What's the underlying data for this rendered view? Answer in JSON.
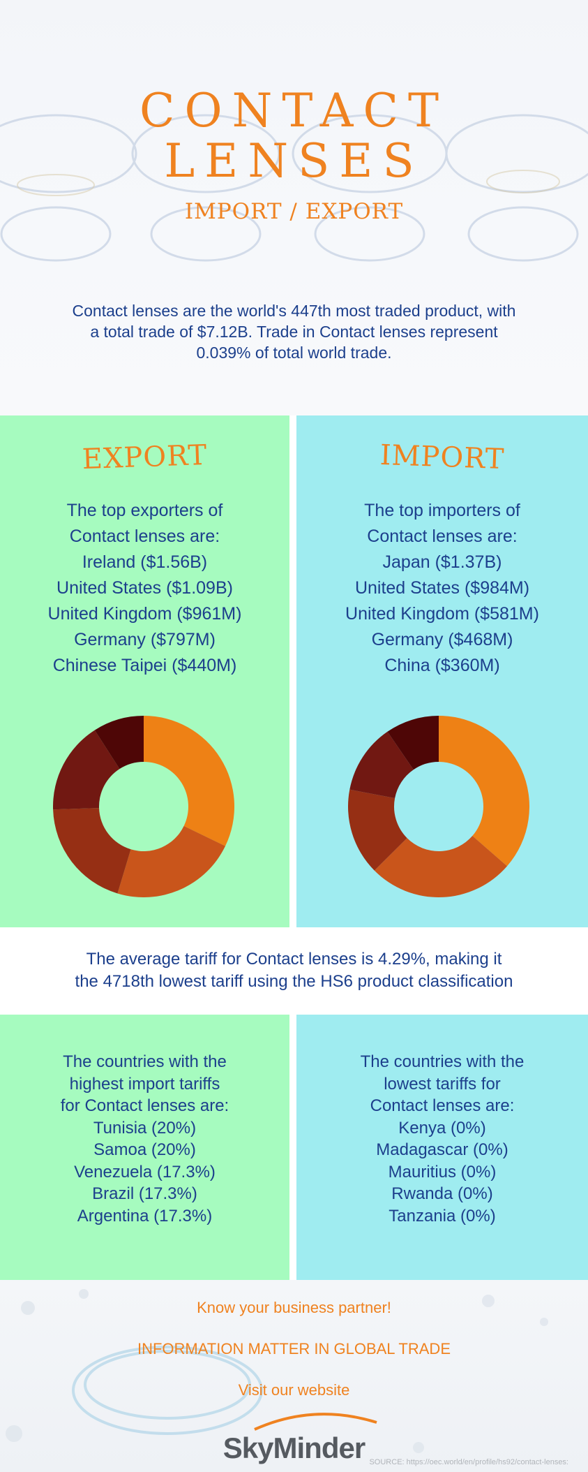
{
  "header": {
    "title_line1": "CONTACT",
    "title_line2": "LENSES",
    "subtitle": "IMPORT / EXPORT",
    "intro": "Contact lenses are the world's 447th most traded product, with a total trade of $7.12B. Trade in Contact lenses represent 0.039% of total world trade."
  },
  "export": {
    "heading": "EXPORT",
    "lead_line1": "The top exporters of",
    "lead_line2": "Contact lenses are:",
    "items": [
      "Ireland ($1.56B)",
      "United States ($1.09B)",
      "United Kingdom ($961M)",
      "Germany ($797M)",
      "Chinese Taipei ($440M)"
    ]
  },
  "import": {
    "heading": "IMPORT",
    "lead_line1": "The top importers of",
    "lead_line2": "Contact lenses are:",
    "items": [
      "Japan ($1.37B)",
      "United States ($984M)",
      "United Kingdom ($581M)",
      "Germany ($468M)",
      "China ($360M)"
    ]
  },
  "chart_data": [
    {
      "type": "pie",
      "labels": [
        "Ireland",
        "United States",
        "United Kingdom",
        "Germany",
        "Chinese Taipei"
      ],
      "values": [
        1.56,
        1.09,
        0.961,
        0.797,
        0.44
      ],
      "colors": [
        "#ee8115",
        "#c9551b",
        "#962f14",
        "#711812",
        "#4e0606"
      ]
    },
    {
      "type": "pie",
      "labels": [
        "Japan",
        "United States",
        "United Kingdom",
        "Germany",
        "China"
      ],
      "values": [
        1.37,
        0.984,
        0.581,
        0.468,
        0.36
      ],
      "colors": [
        "#ee8115",
        "#c9551b",
        "#962f14",
        "#711812",
        "#4e0606"
      ]
    }
  ],
  "tariff": {
    "line1": "The average tariff for Contact lenses is 4.29%, making it",
    "line2": "the 4718th lowest tariff using the HS6 product classification"
  },
  "highest_tariffs": {
    "lead_line1": "The countries with the",
    "lead_line2": "highest import tariffs",
    "lead_line3": "for Contact lenses are:",
    "items": [
      "Tunisia (20%)",
      "Samoa (20%)",
      "Venezuela (17.3%)",
      "Brazil (17.3%)",
      "Argentina (17.3%)"
    ]
  },
  "lowest_tariffs": {
    "lead_line1": "The countries with the",
    "lead_line2": "lowest tariffs for",
    "lead_line3": "Contact lenses are:",
    "items": [
      "Kenya (0%)",
      "Madagascar (0%)",
      "Mauritius (0%)",
      "Rwanda (0%)",
      "Tanzania (0%)"
    ]
  },
  "footer": {
    "line1": "Know your business partner!",
    "line2": "INFORMATION MATTER IN GLOBAL TRADE",
    "line3": "Visit our website",
    "logo": "SkyMinder",
    "source": "SOURCE: https://oec.world/en/profile/hs92/contact-lenses:"
  }
}
